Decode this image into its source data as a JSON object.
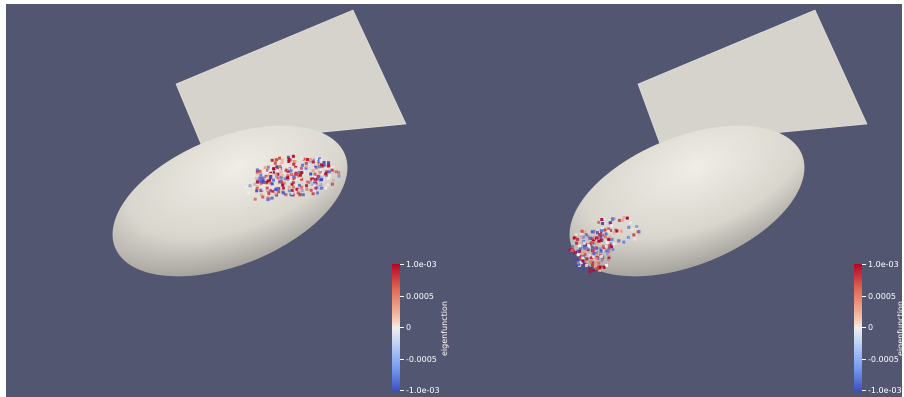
{
  "colorbar_left": {
    "title": "eigenfunction",
    "ticks": [
      "1.0e-03",
      "0.0005",
      "0",
      "-0.0005",
      "-1.0e-03"
    ]
  },
  "colorbar_right": {
    "title": "eigenfunction",
    "ticks": [
      "1.0e-03",
      "0.0005",
      "0",
      "-0.0005",
      "-1.0e-03"
    ]
  },
  "colors": {
    "background": "#525671",
    "plane": "#d6d3cc",
    "ellipsoid": "#dedbd4",
    "positive": "#b40426",
    "negative": "#3b4cc0"
  }
}
